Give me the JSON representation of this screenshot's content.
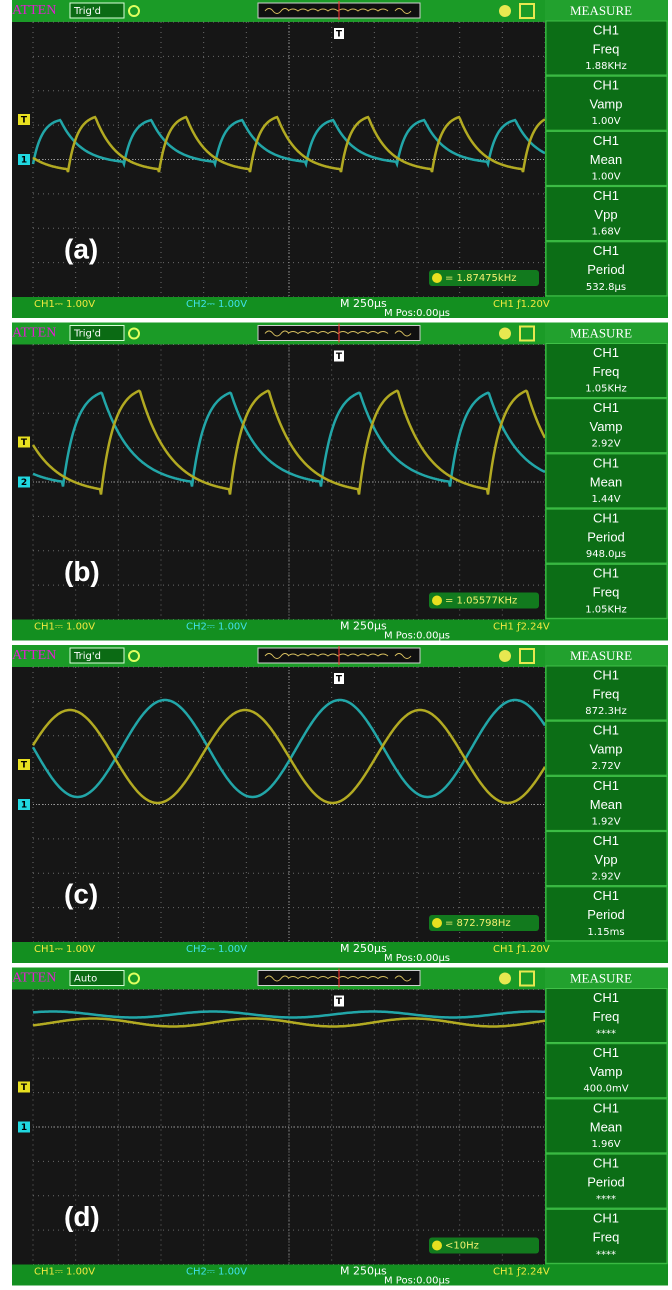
{
  "panels": [
    {
      "label": "(a)",
      "mode": "ATTEN",
      "trigger_status": "Trig'd",
      "measure_title": "MEASURE",
      "trigger_marker": "T",
      "level_marker": "T",
      "channel_marker": "1",
      "measurements": [
        {
          "source": "CH1",
          "name": "Freq",
          "value": "1.88KHz"
        },
        {
          "source": "CH1",
          "name": "Vamp",
          "value": "1.00V"
        },
        {
          "source": "CH1",
          "name": "Mean",
          "value": "1.00V"
        },
        {
          "source": "CH1",
          "name": "Vpp",
          "value": "1.68V"
        },
        {
          "source": "CH1",
          "name": "Period",
          "value": "532.8μs"
        }
      ],
      "frequency": "= 1.87475kHz",
      "ch1_scale": "CH1⎓ 1.00V",
      "ch2_scale": "CH2⎓ 1.00V",
      "time_base": "M 250μs",
      "position": "M Pos:0.00μs",
      "trigger": "CH1 ƒ1.20V"
    },
    {
      "label": "(b)",
      "mode": "ATTEN",
      "trigger_status": "Trig'd",
      "measure_title": "MEASURE",
      "trigger_marker": "T",
      "level_marker": "T",
      "channel_marker": "2",
      "measurements": [
        {
          "source": "CH1",
          "name": "Freq",
          "value": "1.05KHz"
        },
        {
          "source": "CH1",
          "name": "Vamp",
          "value": "2.92V"
        },
        {
          "source": "CH1",
          "name": "Mean",
          "value": "1.44V"
        },
        {
          "source": "CH1",
          "name": "Period",
          "value": "948.0μs"
        },
        {
          "source": "CH1",
          "name": "Freq",
          "value": "1.05KHz"
        }
      ],
      "frequency": "= 1.05577KHz",
      "ch1_scale": "CH1⎓ 1.00V",
      "ch2_scale": "CH2⎓ 1.00V",
      "time_base": "M 250μs",
      "position": "M Pos:0.00μs",
      "trigger": "CH1 ƒ2.24V"
    },
    {
      "label": "(c)",
      "mode": "ATTEN",
      "trigger_status": "Trig'd",
      "measure_title": "MEASURE",
      "trigger_marker": "T",
      "level_marker": "T",
      "channel_marker": "1",
      "measurements": [
        {
          "source": "CH1",
          "name": "Freq",
          "value": "872.3Hz"
        },
        {
          "source": "CH1",
          "name": "Vamp",
          "value": "2.72V"
        },
        {
          "source": "CH1",
          "name": "Mean",
          "value": "1.92V"
        },
        {
          "source": "CH1",
          "name": "Vpp",
          "value": "2.92V"
        },
        {
          "source": "CH1",
          "name": "Period",
          "value": "1.15ms"
        }
      ],
      "frequency": "= 872.798Hz",
      "ch1_scale": "CH1⎓ 1.00V",
      "ch2_scale": "CH2⎓ 1.00V",
      "time_base": "M 250μs",
      "position": "M Pos:0.00μs",
      "trigger": "CH1 ƒ1.20V"
    },
    {
      "label": "(d)",
      "mode": "ATTEN",
      "trigger_status": "Auto",
      "measure_title": "MEASURE",
      "trigger_marker": "T",
      "level_marker": "T",
      "channel_marker": "1",
      "measurements": [
        {
          "source": "CH1",
          "name": "Freq",
          "value": "****"
        },
        {
          "source": "CH1",
          "name": "Vamp",
          "value": "400.0mV"
        },
        {
          "source": "CH1",
          "name": "Mean",
          "value": "1.96V"
        },
        {
          "source": "CH1",
          "name": "Period",
          "value": "****"
        },
        {
          "source": "CH1",
          "name": "Freq",
          "value": "****"
        }
      ],
      "frequency": "<10Hz",
      "ch1_scale": "CH1⎓ 1.00V",
      "ch2_scale": "CH2⎓ 1.00V",
      "time_base": "M 250μs",
      "position": "M Pos:0.00μs",
      "trigger": "CH1 ƒ2.24V"
    }
  ]
}
